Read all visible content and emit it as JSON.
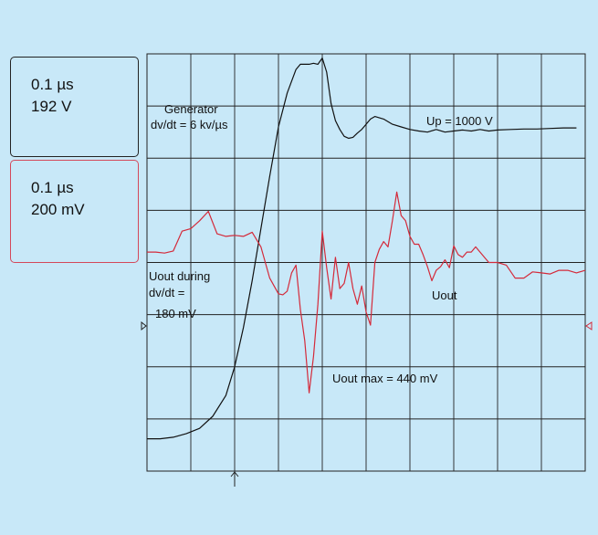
{
  "channels": [
    {
      "time_div": "0.1 µs",
      "volt_div": "192 V",
      "color": "#111111"
    },
    {
      "time_div": "0.1 µs",
      "volt_div": "200 mV",
      "color": "#d42a3a"
    }
  ],
  "annotations": {
    "generator_line1": "Generator",
    "generator_line2": "dv/dt = 6 kv/µs",
    "up": "Up = 1000 V",
    "uout_during_1": "Uout during",
    "uout_during_2": "dv/dt =",
    "uout_during_3": "180 mV",
    "uout": "Uout",
    "uout_max": "Uout max = 440 mV"
  },
  "chart_data": {
    "type": "line",
    "grid": true,
    "x_divisions": 10,
    "y_divisions": 8,
    "series": [
      {
        "color": "#111111",
        "x": [
          0,
          0.3,
          0.6,
          0.9,
          1.2,
          1.5,
          1.8,
          2.0,
          2.2,
          2.4,
          2.6,
          2.8,
          3.0,
          3.2,
          3.4,
          3.5,
          3.6,
          3.7,
          3.8,
          3.9,
          4.0,
          4.1,
          4.2,
          4.3,
          4.4,
          4.5,
          4.6,
          4.7,
          4.8,
          4.9,
          5.0,
          5.1,
          5.2,
          5.4,
          5.6,
          5.8,
          6.0,
          6.2,
          6.4,
          6.6,
          6.8,
          7.0,
          7.2,
          7.4,
          7.6,
          7.8,
          8.0,
          8.3,
          8.6,
          8.9,
          9.2,
          9.5,
          9.8
        ],
        "y": [
          -3.38,
          -3.38,
          -3.35,
          -3.28,
          -3.18,
          -2.95,
          -2.55,
          -2.0,
          -1.25,
          -0.35,
          0.65,
          1.65,
          2.6,
          3.25,
          3.7,
          3.8,
          3.8,
          3.8,
          3.82,
          3.8,
          3.92,
          3.65,
          3.05,
          2.72,
          2.55,
          2.42,
          2.38,
          2.4,
          2.48,
          2.55,
          2.65,
          2.75,
          2.8,
          2.75,
          2.65,
          2.6,
          2.55,
          2.52,
          2.5,
          2.55,
          2.5,
          2.52,
          2.54,
          2.52,
          2.55,
          2.52,
          2.54,
          2.55,
          2.56,
          2.56,
          2.57,
          2.58,
          2.58
        ]
      },
      {
        "color": "#d42a3a",
        "x": [
          0,
          0.2,
          0.4,
          0.6,
          0.8,
          1.0,
          1.2,
          1.4,
          1.6,
          1.8,
          2.0,
          2.2,
          2.4,
          2.6,
          2.8,
          3.0,
          3.1,
          3.2,
          3.3,
          3.4,
          3.5,
          3.6,
          3.7,
          3.8,
          3.9,
          4.0,
          4.1,
          4.2,
          4.3,
          4.4,
          4.5,
          4.6,
          4.7,
          4.8,
          4.9,
          5.0,
          5.1,
          5.2,
          5.3,
          5.4,
          5.5,
          5.6,
          5.7,
          5.8,
          5.9,
          6.0,
          6.1,
          6.2,
          6.3,
          6.4,
          6.5,
          6.6,
          6.7,
          6.8,
          6.9,
          7.0,
          7.1,
          7.2,
          7.3,
          7.4,
          7.5,
          7.6,
          7.8,
          8.0,
          8.2,
          8.4,
          8.6,
          8.8,
          9.0,
          9.2,
          9.4,
          9.6,
          9.8,
          10.0
        ],
        "y": [
          0.2,
          0.2,
          0.18,
          0.22,
          0.6,
          0.65,
          0.8,
          0.98,
          0.55,
          0.5,
          0.52,
          0.5,
          0.58,
          0.3,
          -0.3,
          -0.6,
          -0.62,
          -0.55,
          -0.2,
          -0.05,
          -0.9,
          -1.5,
          -2.5,
          -1.8,
          -0.8,
          0.6,
          -0.1,
          -0.7,
          0.1,
          -0.5,
          -0.4,
          0.0,
          -0.5,
          -0.8,
          -0.45,
          -0.95,
          -1.2,
          0.0,
          0.25,
          0.4,
          0.3,
          0.8,
          1.35,
          0.9,
          0.8,
          0.5,
          0.35,
          0.35,
          0.15,
          -0.08,
          -0.35,
          -0.15,
          -0.08,
          0.05,
          -0.1,
          0.32,
          0.15,
          0.1,
          0.2,
          0.2,
          0.3,
          0.2,
          0.0,
          0.0,
          -0.05,
          -0.3,
          -0.3,
          -0.18,
          -0.2,
          -0.22,
          -0.15,
          -0.15,
          -0.2,
          -0.15
        ]
      }
    ]
  }
}
